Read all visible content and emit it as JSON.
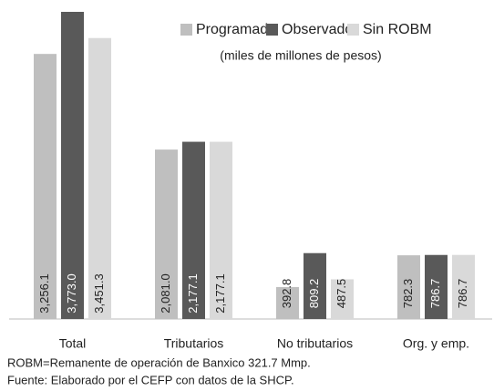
{
  "chart_data": {
    "type": "bar",
    "subtitle": "(miles de millones de pesos)",
    "categories": [
      "Total",
      "Tributarios",
      "No tributarios",
      "Org. y emp."
    ],
    "series": [
      {
        "name": "Programado",
        "color": "#bfbfbf",
        "values": [
          3256.1,
          2081.0,
          392.8,
          782.3
        ],
        "value_labels": [
          "3,256.1",
          "2,081.0",
          "392.8",
          "782.3"
        ]
      },
      {
        "name": "Observado",
        "color": "#595959",
        "values": [
          3773.0,
          2177.1,
          809.2,
          786.7
        ],
        "value_labels": [
          "3,773.0",
          "2,177.1",
          "809.2",
          "786.7"
        ]
      },
      {
        "name": "Sin ROBM",
        "color": "#d9d9d9",
        "values": [
          3451.3,
          2177.1,
          487.5,
          786.7
        ],
        "value_labels": [
          "3,451.3",
          "2,177.1",
          "487.5",
          "786.7"
        ]
      }
    ],
    "notes": [
      "ROBM=Remanente de operación de Banxico 321.7 Mmp.",
      "Fuente: Elaborado por el CEFP con datos de la SHCP."
    ],
    "legend": "top-right"
  }
}
